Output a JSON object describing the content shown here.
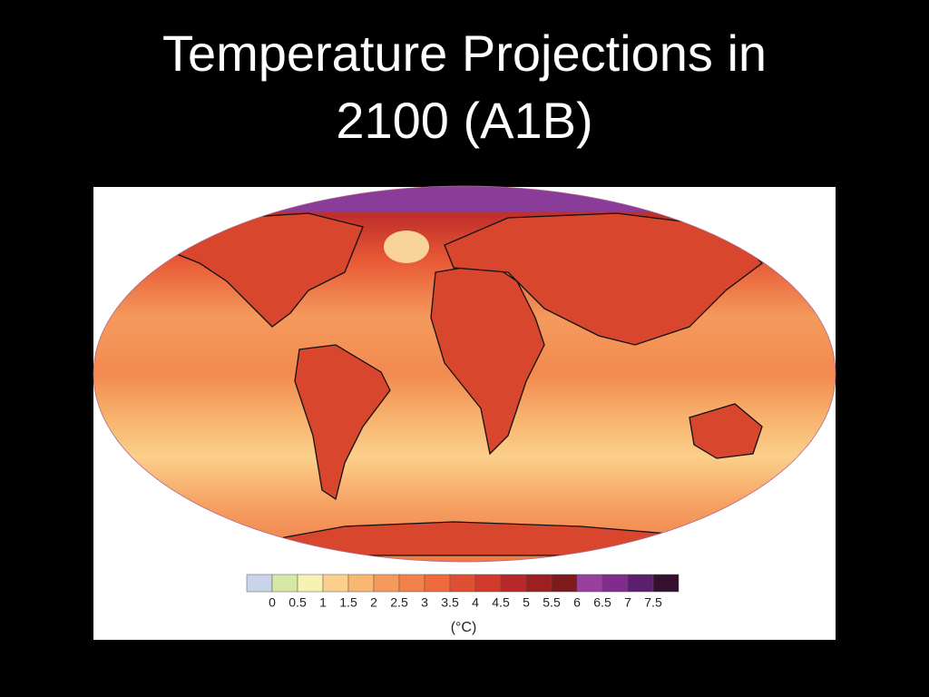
{
  "title": "Temperature Projections in 2100 (A1B)",
  "legend": {
    "ticks": [
      0,
      0.5,
      1,
      1.5,
      2,
      2.5,
      3,
      3.5,
      4,
      4.5,
      5,
      5.5,
      6,
      6.5,
      7,
      7.5
    ],
    "colors": [
      "#c9d3ea",
      "#d7e8a6",
      "#f6f3b2",
      "#fbd08c",
      "#f9b772",
      "#f69a5c",
      "#f3814a",
      "#ef6a3c",
      "#e04f32",
      "#d13a2c",
      "#b92828",
      "#9c1f22",
      "#7e1a1c",
      "#9a3f9e",
      "#7f2c8c",
      "#5c1f6e",
      "#34102e"
    ],
    "unit": "(°C)"
  }
}
